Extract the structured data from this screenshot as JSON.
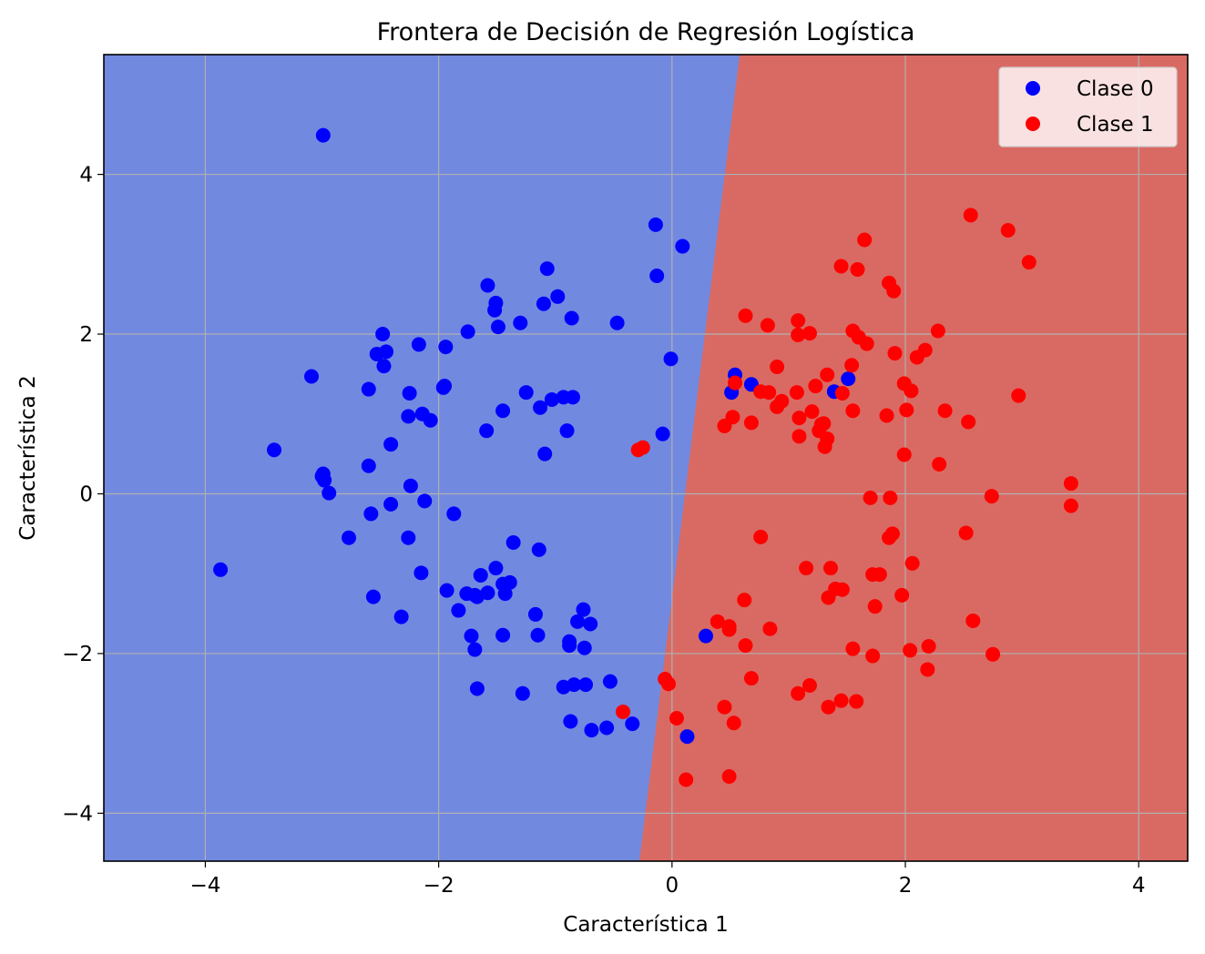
{
  "chart_data": {
    "type": "scatter",
    "title": "Frontera de Decisión de Regresión Logística",
    "xlabel": "Característica 1",
    "ylabel": "Característica 2",
    "xlim": [
      -4.87,
      4.42
    ],
    "ylim": [
      -4.6,
      5.5
    ],
    "xticks": [
      -4,
      -2,
      0,
      2,
      4
    ],
    "xtick_labels": [
      "−4",
      "−2",
      "0",
      "2",
      "4"
    ],
    "yticks": [
      -4,
      -2,
      0,
      2,
      4
    ],
    "ytick_labels": [
      "−4",
      "−2",
      "0",
      "2",
      "4"
    ],
    "grid": true,
    "legend_position": "top-right",
    "decision_boundary": {
      "points": [
        [
          -0.28,
          -4.6
        ],
        [
          0.58,
          5.5
        ]
      ],
      "region_left": {
        "label": "Clase 0",
        "color": "#7289e0"
      },
      "region_right": {
        "label": "Clase 1",
        "color": "#d96a63"
      }
    },
    "series": [
      {
        "name": "Clase 0",
        "color": "#0000ff",
        "points": [
          [
            -2.99,
            4.49
          ],
          [
            -3.09,
            1.47
          ],
          [
            -3.41,
            0.55
          ],
          [
            -3.0,
            0.22
          ],
          [
            -2.99,
            0.25
          ],
          [
            -2.98,
            0.17
          ],
          [
            -2.94,
            0.01
          ],
          [
            -3.87,
            -0.95
          ],
          [
            -2.77,
            -0.55
          ],
          [
            -2.58,
            -0.25
          ],
          [
            -2.56,
            -1.29
          ],
          [
            -2.32,
            -1.54
          ],
          [
            -2.6,
            1.31
          ],
          [
            -2.6,
            0.35
          ],
          [
            -2.53,
            1.75
          ],
          [
            -2.48,
            2.0
          ],
          [
            -2.47,
            1.6
          ],
          [
            -2.45,
            1.78
          ],
          [
            -2.41,
            0.62
          ],
          [
            -2.41,
            -0.13
          ],
          [
            -2.25,
            1.26
          ],
          [
            -2.26,
            0.97
          ],
          [
            -2.24,
            0.1
          ],
          [
            -2.26,
            -0.55
          ],
          [
            -2.17,
            1.87
          ],
          [
            -2.14,
            1.0
          ],
          [
            -2.12,
            -0.09
          ],
          [
            -2.15,
            -0.99
          ],
          [
            -2.07,
            0.92
          ],
          [
            -1.96,
            1.33
          ],
          [
            -1.95,
            1.35
          ],
          [
            -1.94,
            1.84
          ],
          [
            -1.93,
            -1.21
          ],
          [
            -1.87,
            -0.25
          ],
          [
            -1.83,
            -1.46
          ],
          [
            -1.75,
            2.03
          ],
          [
            -1.76,
            -1.25
          ],
          [
            -1.72,
            -1.78
          ],
          [
            -1.69,
            -1.27
          ],
          [
            -1.69,
            -1.95
          ],
          [
            -1.67,
            -1.29
          ],
          [
            -1.67,
            -2.44
          ],
          [
            -1.64,
            -1.02
          ],
          [
            -1.59,
            0.79
          ],
          [
            -1.58,
            2.61
          ],
          [
            -1.58,
            -1.24
          ],
          [
            -1.52,
            2.3
          ],
          [
            -1.51,
            2.39
          ],
          [
            -1.49,
            2.09
          ],
          [
            -1.51,
            -0.93
          ],
          [
            -1.45,
            1.04
          ],
          [
            -1.45,
            -1.13
          ],
          [
            -1.45,
            -1.77
          ],
          [
            -1.43,
            -1.25
          ],
          [
            -1.39,
            -1.11
          ],
          [
            -1.36,
            -0.61
          ],
          [
            -1.3,
            2.14
          ],
          [
            -1.28,
            -2.5
          ],
          [
            -1.25,
            1.27
          ],
          [
            -1.17,
            -1.51
          ],
          [
            -1.15,
            -1.77
          ],
          [
            -1.14,
            -0.7
          ],
          [
            -1.13,
            1.08
          ],
          [
            -1.1,
            2.38
          ],
          [
            -1.09,
            0.5
          ],
          [
            -1.07,
            2.82
          ],
          [
            -1.03,
            1.18
          ],
          [
            -0.98,
            2.47
          ],
          [
            -0.93,
            1.21
          ],
          [
            -0.93,
            -2.42
          ],
          [
            -0.9,
            0.79
          ],
          [
            -0.88,
            -1.85
          ],
          [
            -0.88,
            -1.9
          ],
          [
            -0.87,
            -2.85
          ],
          [
            -0.86,
            2.2
          ],
          [
            -0.85,
            1.21
          ],
          [
            -0.84,
            -2.39
          ],
          [
            -0.81,
            -1.6
          ],
          [
            -0.76,
            -1.45
          ],
          [
            -0.75,
            -1.93
          ],
          [
            -0.74,
            -2.39
          ],
          [
            -0.7,
            -1.63
          ],
          [
            -0.69,
            -2.96
          ],
          [
            -0.56,
            -2.93
          ],
          [
            -0.53,
            -2.35
          ],
          [
            -0.47,
            2.14
          ],
          [
            -0.34,
            -2.88
          ],
          [
            -0.14,
            3.37
          ],
          [
            -0.13,
            2.73
          ],
          [
            -0.08,
            0.75
          ],
          [
            -0.01,
            1.69
          ],
          [
            0.09,
            3.1
          ],
          [
            0.13,
            -3.04
          ],
          [
            0.29,
            -1.78
          ],
          [
            0.51,
            1.27
          ],
          [
            0.54,
            1.49
          ],
          [
            0.68,
            1.37
          ],
          [
            1.39,
            1.28
          ],
          [
            1.51,
            1.44
          ]
        ]
      },
      {
        "name": "Clase 1",
        "color": "#ff0000",
        "points": [
          [
            2.56,
            3.49
          ],
          [
            2.88,
            3.3
          ],
          [
            1.65,
            3.18
          ],
          [
            3.06,
            2.9
          ],
          [
            1.45,
            2.85
          ],
          [
            1.59,
            2.81
          ],
          [
            1.86,
            2.64
          ],
          [
            1.9,
            2.54
          ],
          [
            0.63,
            2.23
          ],
          [
            1.08,
            2.17
          ],
          [
            0.82,
            2.11
          ],
          [
            1.55,
            2.04
          ],
          [
            2.28,
            2.04
          ],
          [
            1.08,
            1.99
          ],
          [
            1.18,
            2.01
          ],
          [
            1.6,
            1.96
          ],
          [
            1.67,
            1.88
          ],
          [
            2.17,
            1.8
          ],
          [
            1.91,
            1.76
          ],
          [
            2.1,
            1.71
          ],
          [
            0.9,
            1.59
          ],
          [
            1.54,
            1.61
          ],
          [
            1.33,
            1.49
          ],
          [
            0.54,
            1.39
          ],
          [
            1.99,
            1.38
          ],
          [
            1.23,
            1.35
          ],
          [
            2.05,
            1.29
          ],
          [
            0.76,
            1.28
          ],
          [
            0.83,
            1.27
          ],
          [
            1.07,
            1.27
          ],
          [
            1.46,
            1.26
          ],
          [
            2.97,
            1.23
          ],
          [
            0.9,
            1.09
          ],
          [
            0.94,
            1.16
          ],
          [
            1.2,
            1.03
          ],
          [
            1.55,
            1.04
          ],
          [
            2.01,
            1.05
          ],
          [
            2.34,
            1.04
          ],
          [
            0.52,
            0.96
          ],
          [
            1.09,
            0.95
          ],
          [
            1.84,
            0.98
          ],
          [
            0.45,
            0.85
          ],
          [
            0.68,
            0.89
          ],
          [
            1.28,
            0.87
          ],
          [
            1.3,
            0.88
          ],
          [
            2.54,
            0.9
          ],
          [
            1.26,
            0.79
          ],
          [
            1.09,
            0.72
          ],
          [
            1.33,
            0.69
          ],
          [
            -0.29,
            0.55
          ],
          [
            -0.25,
            0.58
          ],
          [
            1.31,
            0.59
          ],
          [
            1.99,
            0.49
          ],
          [
            2.29,
            0.37
          ],
          [
            3.42,
            0.13
          ],
          [
            1.7,
            -0.05
          ],
          [
            1.87,
            -0.05
          ],
          [
            2.74,
            -0.03
          ],
          [
            3.42,
            -0.15
          ],
          [
            1.89,
            -0.5
          ],
          [
            1.86,
            -0.55
          ],
          [
            0.76,
            -0.54
          ],
          [
            2.52,
            -0.49
          ],
          [
            2.06,
            -0.87
          ],
          [
            1.15,
            -0.93
          ],
          [
            1.36,
            -0.93
          ],
          [
            1.72,
            -1.01
          ],
          [
            1.78,
            -1.01
          ],
          [
            1.4,
            -1.19
          ],
          [
            1.46,
            -1.2
          ],
          [
            1.34,
            -1.3
          ],
          [
            1.97,
            -1.27
          ],
          [
            0.62,
            -1.33
          ],
          [
            1.74,
            -1.41
          ],
          [
            0.39,
            -1.6
          ],
          [
            0.49,
            -1.66
          ],
          [
            0.49,
            -1.7
          ],
          [
            0.84,
            -1.69
          ],
          [
            2.58,
            -1.59
          ],
          [
            0.63,
            -1.9
          ],
          [
            1.55,
            -1.94
          ],
          [
            2.04,
            -1.96
          ],
          [
            2.2,
            -1.91
          ],
          [
            1.72,
            -2.03
          ],
          [
            2.75,
            -2.01
          ],
          [
            0.68,
            -2.31
          ],
          [
            2.19,
            -2.2
          ],
          [
            -0.06,
            -2.32
          ],
          [
            -0.03,
            -2.38
          ],
          [
            1.18,
            -2.4
          ],
          [
            1.08,
            -2.5
          ],
          [
            1.45,
            -2.59
          ],
          [
            1.58,
            -2.6
          ],
          [
            1.34,
            -2.67
          ],
          [
            0.45,
            -2.67
          ],
          [
            -0.42,
            -2.73
          ],
          [
            0.04,
            -2.81
          ],
          [
            0.53,
            -2.87
          ],
          [
            0.12,
            -3.58
          ],
          [
            0.49,
            -3.54
          ]
        ]
      }
    ]
  }
}
